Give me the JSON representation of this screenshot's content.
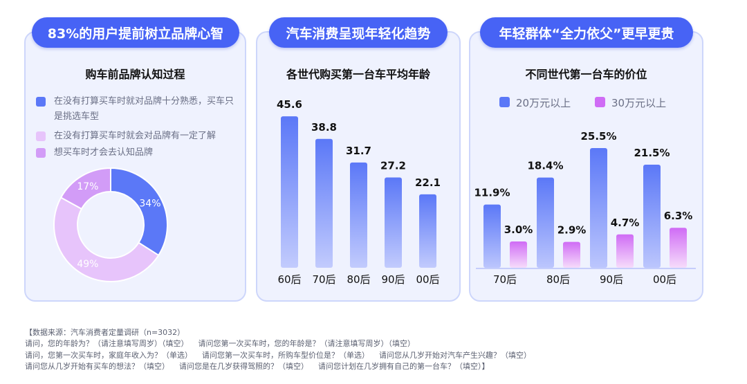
{
  "panels": [
    {
      "header": "83%的用户提前树立品牌心智"
    },
    {
      "header": "汽车消费呈现年轻化趋势"
    },
    {
      "header": "年轻群体“全力依父”更早更贵"
    }
  ],
  "chart_data": [
    {
      "type": "pie",
      "title": "购车前品牌认知过程",
      "labels": [
        "在没有打算买车时就对品牌十分熟悉，买车只是挑选车型",
        "在没有打算买车时就会对品牌有一定了解",
        "想买车时才会去认知品牌"
      ],
      "values": [
        34,
        49,
        17
      ],
      "value_labels": [
        "34%",
        "49%",
        "17%"
      ],
      "colors": [
        "#5b78f7",
        "#e7c4fb",
        "#d29cf7"
      ],
      "donut": true
    },
    {
      "type": "bar",
      "title": "各世代购买第一台车平均年龄",
      "categories": [
        "60后",
        "70后",
        "80后",
        "90后",
        "00后"
      ],
      "values": [
        45.6,
        38.8,
        31.7,
        27.2,
        22.1
      ],
      "value_labels": [
        "45.6",
        "38.8",
        "31.7",
        "27.2",
        "22.1"
      ],
      "xlabel": "",
      "ylabel": ""
    },
    {
      "type": "bar",
      "title": "不同世代第一台车的价位",
      "categories": [
        "70后",
        "80后",
        "90后",
        "00后"
      ],
      "series": [
        {
          "name": "20万元以上",
          "values": [
            11.9,
            18.4,
            25.5,
            21.5
          ],
          "labels": [
            "11.9%",
            "18.4%",
            "25.5%",
            "21.5%"
          ],
          "color": "#5b78f7"
        },
        {
          "name": "30万元以上",
          "values": [
            3.0,
            2.9,
            4.7,
            6.3
          ],
          "labels": [
            "3.0%",
            "2.9%",
            "4.7%",
            "6.3%"
          ],
          "color": "#cf6cf5"
        }
      ],
      "legend": "top"
    }
  ],
  "footnote": [
    "【数据来源：汽车消费者定量调研（n=3032）",
    "请问，您的年龄为？（请注意填写周岁）（填空）    请问您第一次买车时，您的年龄是？（请注意填写周岁）（填空）",
    "请问，您第一次买车时，家庭年收入为？（单选）    请问您第一次买车时，所购车型价位是？（单选）    请问您从几岁开始对汽车产生兴趣？（填空）",
    "请问您从几岁开始有买车的想法？（填空）    请问您是在几岁获得驾照的？（填空）    请问您计划在几岁拥有自己的第一台车？（填空）】"
  ]
}
